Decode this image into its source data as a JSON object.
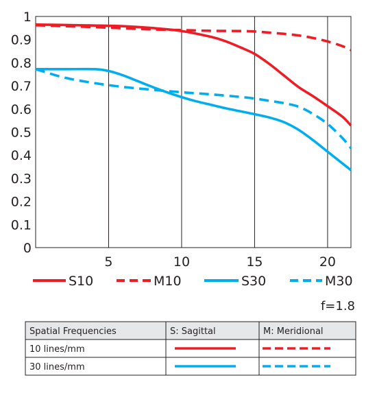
{
  "chart_data": {
    "type": "line",
    "title": "",
    "xlabel": "",
    "ylabel": "",
    "xlim": [
      0,
      21.6
    ],
    "ylim": [
      0,
      1
    ],
    "x_ticks": [
      "5",
      "10",
      "15",
      "20"
    ],
    "x_tick_values": [
      5,
      10,
      15,
      20
    ],
    "y_ticks": [
      "0",
      "0.1",
      "0.2",
      "0.3",
      "0.4",
      "0.5",
      "0.6",
      "0.7",
      "0.8",
      "0.9",
      "1"
    ],
    "y_tick_values": [
      0,
      0.1,
      0.2,
      0.3,
      0.4,
      0.5,
      0.6,
      0.7,
      0.8,
      0.9,
      1.0
    ],
    "grid": "vertical",
    "legend_placement": "bottom",
    "aperture_note": "f=1.8",
    "colors": {
      "red": "#ee1c25",
      "blue": "#00aeef",
      "grid": "#231f20"
    },
    "series": [
      {
        "name": "S10",
        "color": "#ee1c25",
        "dash": false,
        "x": [
          0,
          2,
          4,
          6,
          8,
          10,
          12,
          13,
          14,
          15,
          16,
          17,
          18,
          19,
          20,
          21,
          21.6
        ],
        "y": [
          0.965,
          0.963,
          0.961,
          0.958,
          0.95,
          0.937,
          0.912,
          0.893,
          0.867,
          0.838,
          0.795,
          0.745,
          0.695,
          0.655,
          0.612,
          0.567,
          0.528
        ]
      },
      {
        "name": "M10",
        "color": "#ee1c25",
        "dash": true,
        "x": [
          0,
          2,
          4,
          6,
          8,
          10,
          12,
          14,
          15,
          16,
          17,
          18,
          19,
          20,
          21,
          21.6
        ],
        "y": [
          0.962,
          0.958,
          0.954,
          0.949,
          0.944,
          0.941,
          0.938,
          0.937,
          0.935,
          0.93,
          0.925,
          0.918,
          0.907,
          0.892,
          0.872,
          0.855
        ]
      },
      {
        "name": "S30",
        "color": "#00aeef",
        "dash": false,
        "x": [
          0,
          2,
          4,
          5,
          6,
          7,
          8,
          9,
          10,
          11,
          12,
          13,
          14,
          15,
          16,
          17,
          18,
          19,
          20,
          21,
          21.6
        ],
        "y": [
          0.772,
          0.772,
          0.772,
          0.764,
          0.745,
          0.72,
          0.695,
          0.672,
          0.651,
          0.633,
          0.618,
          0.603,
          0.59,
          0.577,
          0.563,
          0.543,
          0.51,
          0.465,
          0.415,
          0.365,
          0.335
        ]
      },
      {
        "name": "M30",
        "color": "#00aeef",
        "dash": true,
        "x": [
          0,
          2,
          4,
          6,
          8,
          10,
          12,
          14,
          15,
          16,
          17,
          18,
          19,
          20,
          21,
          21.6
        ],
        "y": [
          0.772,
          0.735,
          0.712,
          0.695,
          0.683,
          0.672,
          0.663,
          0.652,
          0.645,
          0.635,
          0.625,
          0.61,
          0.578,
          0.535,
          0.475,
          0.43
        ]
      }
    ]
  },
  "table": {
    "headers": [
      "Spatial Frequencies",
      "S: Sagittal",
      "M: Meridional"
    ],
    "rows": [
      {
        "label": "10 lines/mm",
        "color": "#ee1c25"
      },
      {
        "label": "30 lines/mm",
        "color": "#00aeef"
      }
    ]
  }
}
